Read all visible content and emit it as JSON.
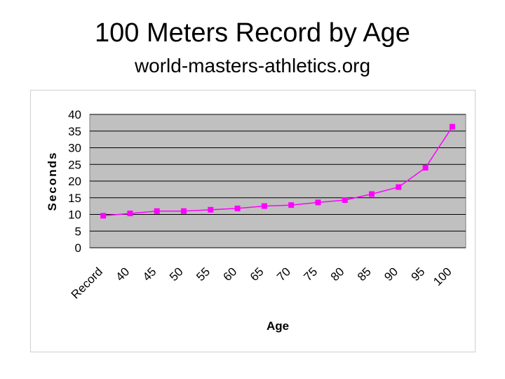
{
  "header": {
    "title": "100 Meters Record by Age",
    "subtitle": "world-masters-athletics.org"
  },
  "chart_data": {
    "type": "line",
    "title": "",
    "xlabel": "Age",
    "ylabel": "Seconds",
    "categories": [
      "Record",
      "40",
      "45",
      "50",
      "55",
      "60",
      "65",
      "70",
      "75",
      "80",
      "85",
      "90",
      "95",
      "100"
    ],
    "series": [
      {
        "values": [
          9.6,
          10.3,
          11.0,
          11.0,
          11.4,
          11.8,
          12.5,
          12.8,
          13.6,
          14.3,
          16.1,
          18.2,
          24.0,
          36.3
        ]
      }
    ],
    "ylim": [
      0,
      40
    ],
    "yticks": [
      0,
      5,
      10,
      15,
      20,
      25,
      30,
      35,
      40
    ],
    "grid": true,
    "legend": "none",
    "colors": {
      "plot_background": "#c0c0c0",
      "line": "#ff00ff",
      "marker": "#ff00ff",
      "gridline": "#000000"
    }
  }
}
